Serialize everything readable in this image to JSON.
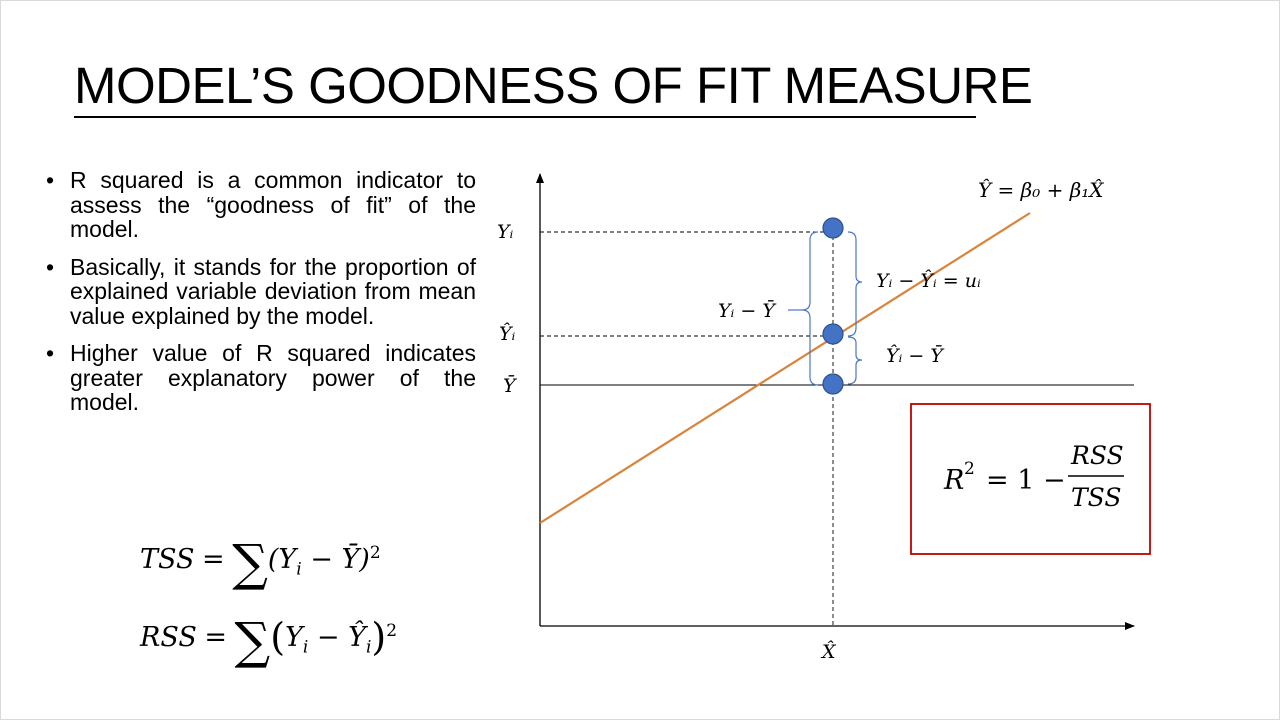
{
  "slide": {
    "title": "MODEL’S GOODNESS OF FIT MEASURE",
    "bullets": [
      {
        "text": "R squared is a common indicator to assess the “goodness of fit” of the model."
      },
      {
        "text": "Basically, it stands for the proportion of explained variable deviation from mean value explained by the model."
      },
      {
        "text": "Higher value of R squared indicates greater explanatory power of the model."
      }
    ],
    "bullet_symbol": "•"
  },
  "formulas": {
    "tss": {
      "lhs": "TSS",
      "eq": "=",
      "sum": "∑",
      "body": "(Y",
      "sub": "i",
      "rest": " − Ȳ)",
      "sup": "2"
    },
    "rss": {
      "lhs": "RSS",
      "eq": "=",
      "sum": "∑",
      "open": "(",
      "y": "Y",
      "sub": "i",
      "minus": " − ",
      "yhat": "Ŷ",
      "sub2": "i",
      "close": ")",
      "sup": "2"
    },
    "r2": {
      "lhs": "R",
      "sup": "2",
      "eq": "= 1 −",
      "num": "RSS",
      "den": "TSS"
    }
  },
  "diagram": {
    "regression_label": "Ŷ = β₀ + β₁X̂",
    "y_labels": {
      "yi": "Yᵢ",
      "yhat_i": "Ŷᵢ",
      "ybar": "Ȳ"
    },
    "x_label": "X̂",
    "brace_labels": {
      "total": "Yᵢ − Ȳ",
      "residual": "Yᵢ − Ŷᵢ = uᵢ",
      "explained": "Ŷᵢ − Ȳ"
    },
    "colors": {
      "line": "#d9843b",
      "points": "#4472c4",
      "points_stroke": "#2f528f",
      "box": "#c00000",
      "brace": "#4a79c8"
    },
    "points_on_x_hat": [
      {
        "name": "Yᵢ"
      },
      {
        "name": "Ŷᵢ"
      },
      {
        "name": "Ȳ"
      }
    ]
  }
}
